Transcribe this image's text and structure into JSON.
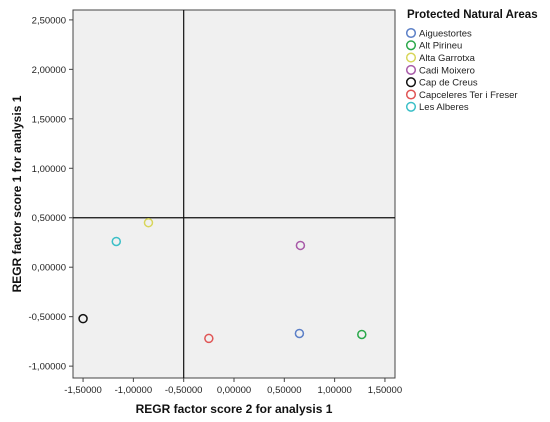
{
  "chart_data": {
    "type": "scatter",
    "xlabel": "REGR factor score   2 for analysis 1",
    "ylabel": "REGR factor score   1 for analysis 1",
    "xlim": [
      -1.6,
      1.6
    ],
    "ylim": [
      -1.12,
      2.6
    ],
    "x_ticks": [
      -1.5,
      -1.0,
      -0.5,
      0.0,
      0.5,
      1.0,
      1.5
    ],
    "x_tick_labels": [
      "-1,50000",
      "-1,00000",
      "-0,50000",
      "0,00000",
      "0,50000",
      "1,00000",
      "1,50000"
    ],
    "y_ticks": [
      -1.0,
      -0.5,
      0.0,
      0.5,
      1.0,
      1.5,
      2.0,
      2.5
    ],
    "y_tick_labels": [
      "-1,00000",
      "-0,50000",
      "0,00000",
      "0,50000",
      "1,00000",
      "1,50000",
      "2,00000",
      "2,50000"
    ],
    "reference_lines": {
      "x": -0.5,
      "y": 0.5
    },
    "grid": false,
    "legend": {
      "title": "Protected Natural Areas",
      "placement": "right"
    },
    "series": [
      {
        "name": "Aiguestortes",
        "color": "#5b7fc7",
        "points": [
          [
            0.65,
            -0.67
          ]
        ]
      },
      {
        "name": "Alt Pirineu",
        "color": "#2aa84a",
        "points": [
          [
            1.27,
            -0.68
          ]
        ]
      },
      {
        "name": "Alta Garrotxa",
        "color": "#d8d65a",
        "points": [
          [
            -0.85,
            0.45
          ]
        ]
      },
      {
        "name": "Cadi Moixero",
        "color": "#a85aa8",
        "points": [
          [
            0.66,
            0.22
          ]
        ]
      },
      {
        "name": "Cap de Creus",
        "color": "#111111",
        "points": [
          [
            -1.5,
            -0.52
          ]
        ]
      },
      {
        "name": "Capceleres Ter i Freser",
        "color": "#e05555",
        "points": [
          [
            -0.25,
            -0.72
          ]
        ]
      },
      {
        "name": "Les Alberes",
        "color": "#3bbfc7",
        "points": [
          [
            -1.17,
            0.26
          ]
        ]
      }
    ]
  }
}
